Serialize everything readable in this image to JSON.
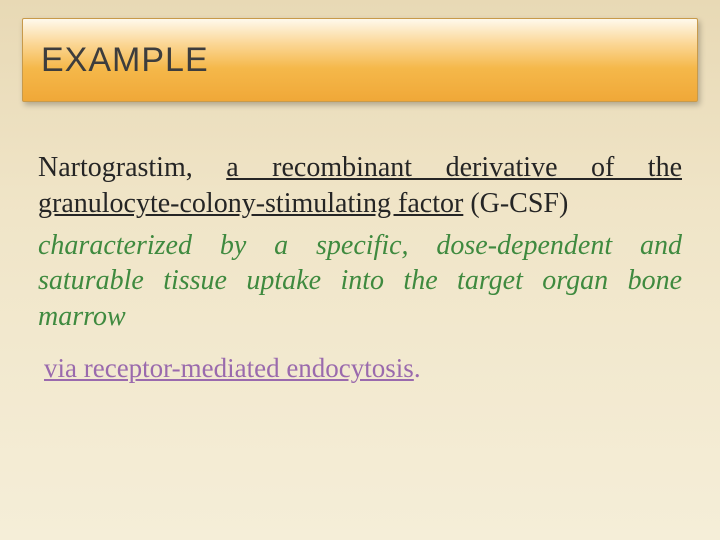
{
  "slide": {
    "title": "EXAMPLE",
    "background_gradient": [
      "#e8d9b5",
      "#f0e5c8",
      "#f5eed8"
    ],
    "title_box": {
      "gradient": [
        "#fef9ec",
        "#fbd796",
        "#f5b84a",
        "#f0a838"
      ],
      "border_color": "#c89a4a",
      "font_size": 34,
      "text_color": "#3d3d3d"
    },
    "body": {
      "font_size": 28,
      "drug_name": "Nartograstim",
      "comma_sep": ", ",
      "phrase1": "a recombinant derivative of the granulocyte-colony-stimulating factor",
      "phrase1_suffix": " (G-CSF)",
      "phrase2": "characterized by a specific, dose-dependent and saturable tissue uptake into the target organ bone marrow",
      "phrase3": "via receptor-mediated endocytosis",
      "phrase3_period": ".",
      "colors": {
        "black": "#252525",
        "green_italic": "#3f8a3f",
        "purple": "#9a6aad"
      }
    }
  }
}
